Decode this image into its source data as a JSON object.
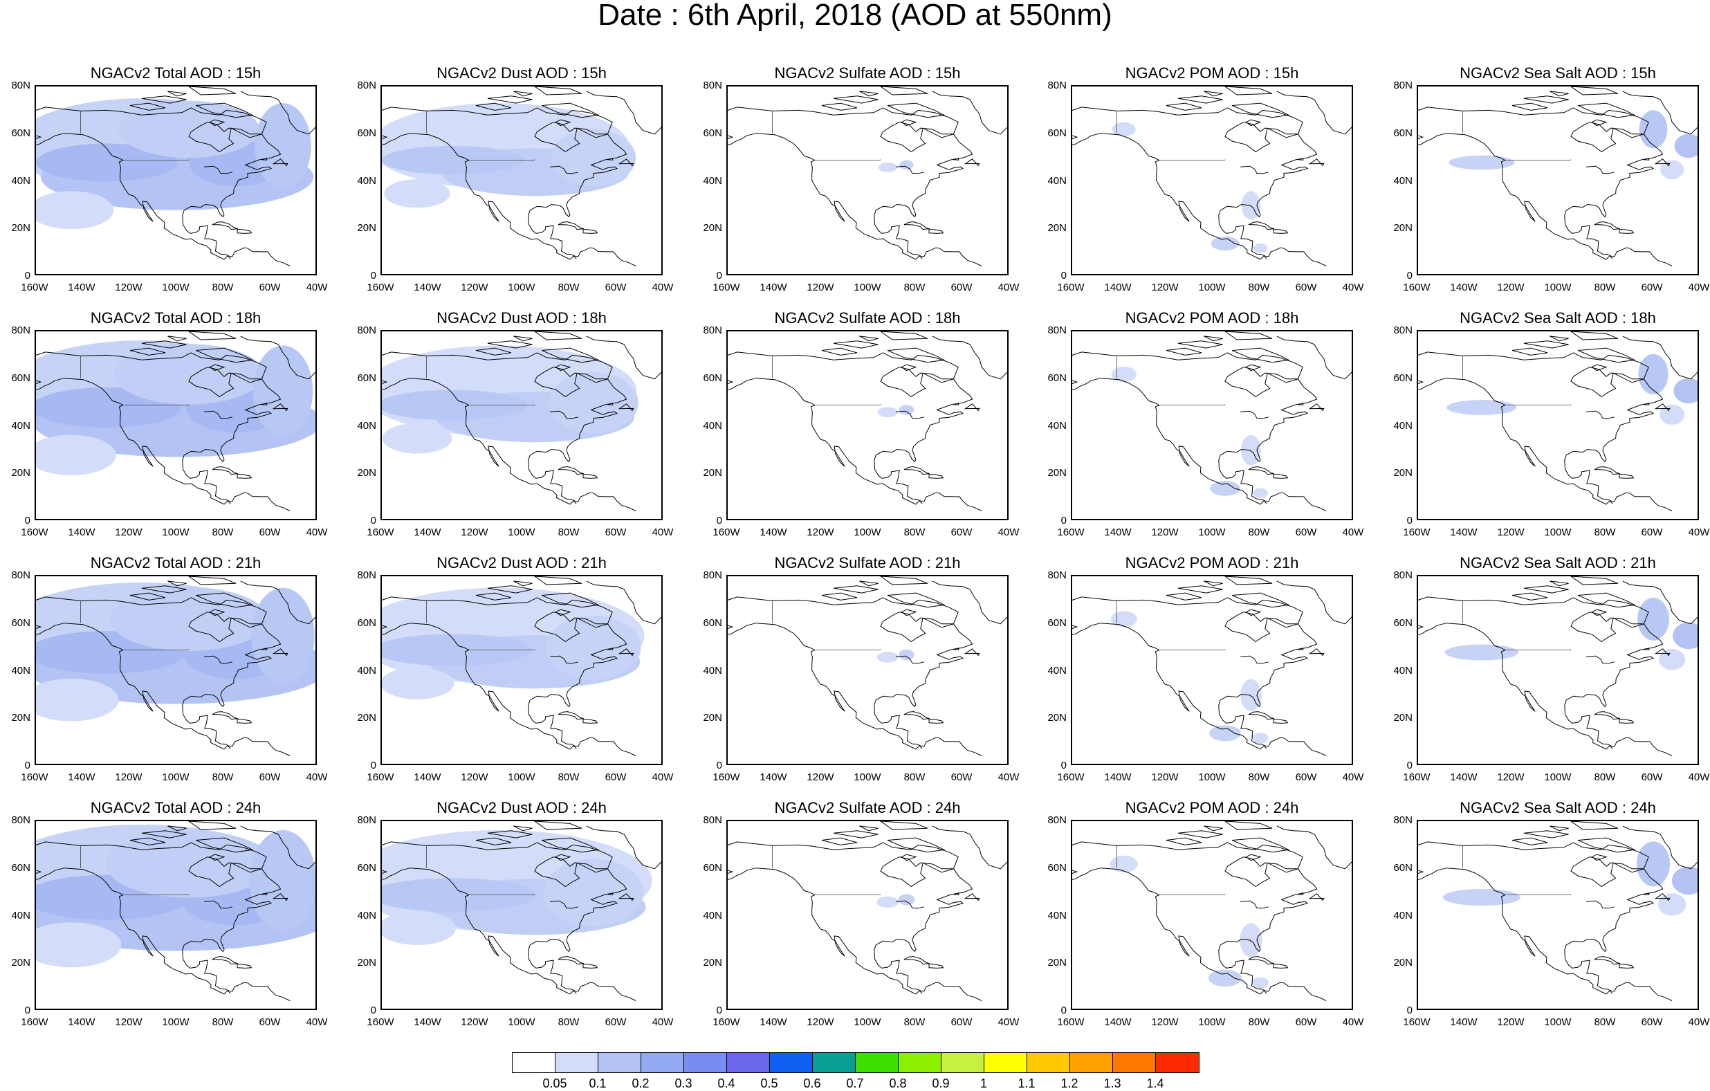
{
  "title": "Date : 6th April, 2018 (AOD at 550nm)",
  "lat_ticks": [
    "80N",
    "60N",
    "40N",
    "20N",
    "0"
  ],
  "lon_ticks": [
    "160W",
    "140W",
    "120W",
    "100W",
    "80W",
    "60W",
    "40W"
  ],
  "map_extent": {
    "lon_min": -160,
    "lon_max": -40,
    "lat_min": 0,
    "lat_max": 80
  },
  "panels": [
    [
      "NGACv2 Total AOD : 15h",
      "NGACv2 Dust AOD : 15h",
      "NGACv2 Sulfate AOD : 15h",
      "NGACv2 POM AOD : 15h",
      "NGACv2 Sea Salt AOD : 15h"
    ],
    [
      "NGACv2 Total AOD : 18h",
      "NGACv2 Dust AOD : 18h",
      "NGACv2 Sulfate AOD : 18h",
      "NGACv2 POM AOD : 18h",
      "NGACv2 Sea Salt AOD : 18h"
    ],
    [
      "NGACv2 Total AOD : 21h",
      "NGACv2 Dust AOD : 21h",
      "NGACv2 Sulfate AOD : 21h",
      "NGACv2 POM AOD : 21h",
      "NGACv2 Sea Salt AOD : 21h"
    ],
    [
      "NGACv2 Total AOD : 24h",
      "NGACv2 Dust AOD : 24h",
      "NGACv2 Sulfate AOD : 24h",
      "NGACv2 POM AOD : 24h",
      "NGACv2 Sea Salt  AOD : 24h"
    ]
  ],
  "colorbar": {
    "colors": [
      "#ffffff",
      "#d3dcf8",
      "#b3c4f4",
      "#93a9f2",
      "#7b8cf0",
      "#6b66ec",
      "#0f5ff0",
      "#0a9e96",
      "#3fe000",
      "#8cf000",
      "#c8f040",
      "#ffff00",
      "#ffc800",
      "#ffa000",
      "#ff7800",
      "#ff2a00"
    ],
    "labels": [
      "0.05",
      "0.1",
      "0.2",
      "0.3",
      "0.4",
      "0.5",
      "0.6",
      "0.7",
      "0.8",
      "0.9",
      "1",
      "1.1",
      "1.2",
      "1.3",
      "1.4"
    ]
  }
}
